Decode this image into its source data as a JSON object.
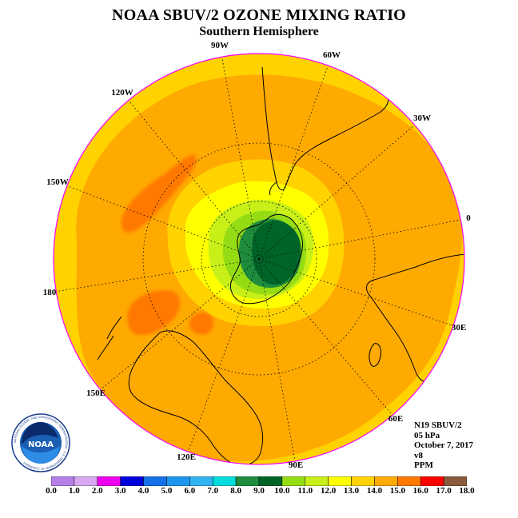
{
  "title": "NOAA SBUV/2 OZONE MIXING RATIO",
  "subtitle": "Southern Hemisphere",
  "info": {
    "satellite": "N19 SBUV/2",
    "level": "05 hPa",
    "date": "October 7, 2017",
    "version": "v8",
    "units": "PPM"
  },
  "longitude_labels": [
    "90W",
    "60W",
    "30W",
    "0",
    "30E",
    "60E",
    "90E",
    "120E",
    "150E",
    "180",
    "150W",
    "120W"
  ],
  "colorbar": {
    "ticks": [
      "0.0",
      "1.0",
      "2.0",
      "3.0",
      "4.0",
      "5.0",
      "6.0",
      "7.0",
      "8.0",
      "9.0",
      "10.0",
      "11.0",
      "12.0",
      "13.0",
      "14.0",
      "15.0",
      "16.0",
      "17.0",
      "18.0"
    ],
    "colors": [
      "#b57fe8",
      "#d8a8f0",
      "#ee00ee",
      "#0000dd",
      "#1470e6",
      "#1e96ee",
      "#32b4f0",
      "#00dcdc",
      "#1e8c3c",
      "#006428",
      "#96dc14",
      "#c8f018",
      "#ffff00",
      "#ffd200",
      "#ffaa00",
      "#ff7800",
      "#ff0000",
      "#8b5a3c"
    ]
  },
  "logo": {
    "text": "NOAA",
    "ring_text": "NATIONAL OCEANIC AND ATMOSPHERIC ADMINISTRATION · U.S. DEPARTMENT OF COMMERCE"
  },
  "map_colors": {
    "ocean_base": "#ffaa00",
    "rim": "#ffd200",
    "maxima": "#ff7800",
    "ring_light": "#ffff00",
    "ring_lime": "#c8f018",
    "ring_green": "#96dc14",
    "core_green": "#1e8c3c",
    "core_dark": "#006428",
    "border": "#ff00ff",
    "coast": "#000000"
  }
}
